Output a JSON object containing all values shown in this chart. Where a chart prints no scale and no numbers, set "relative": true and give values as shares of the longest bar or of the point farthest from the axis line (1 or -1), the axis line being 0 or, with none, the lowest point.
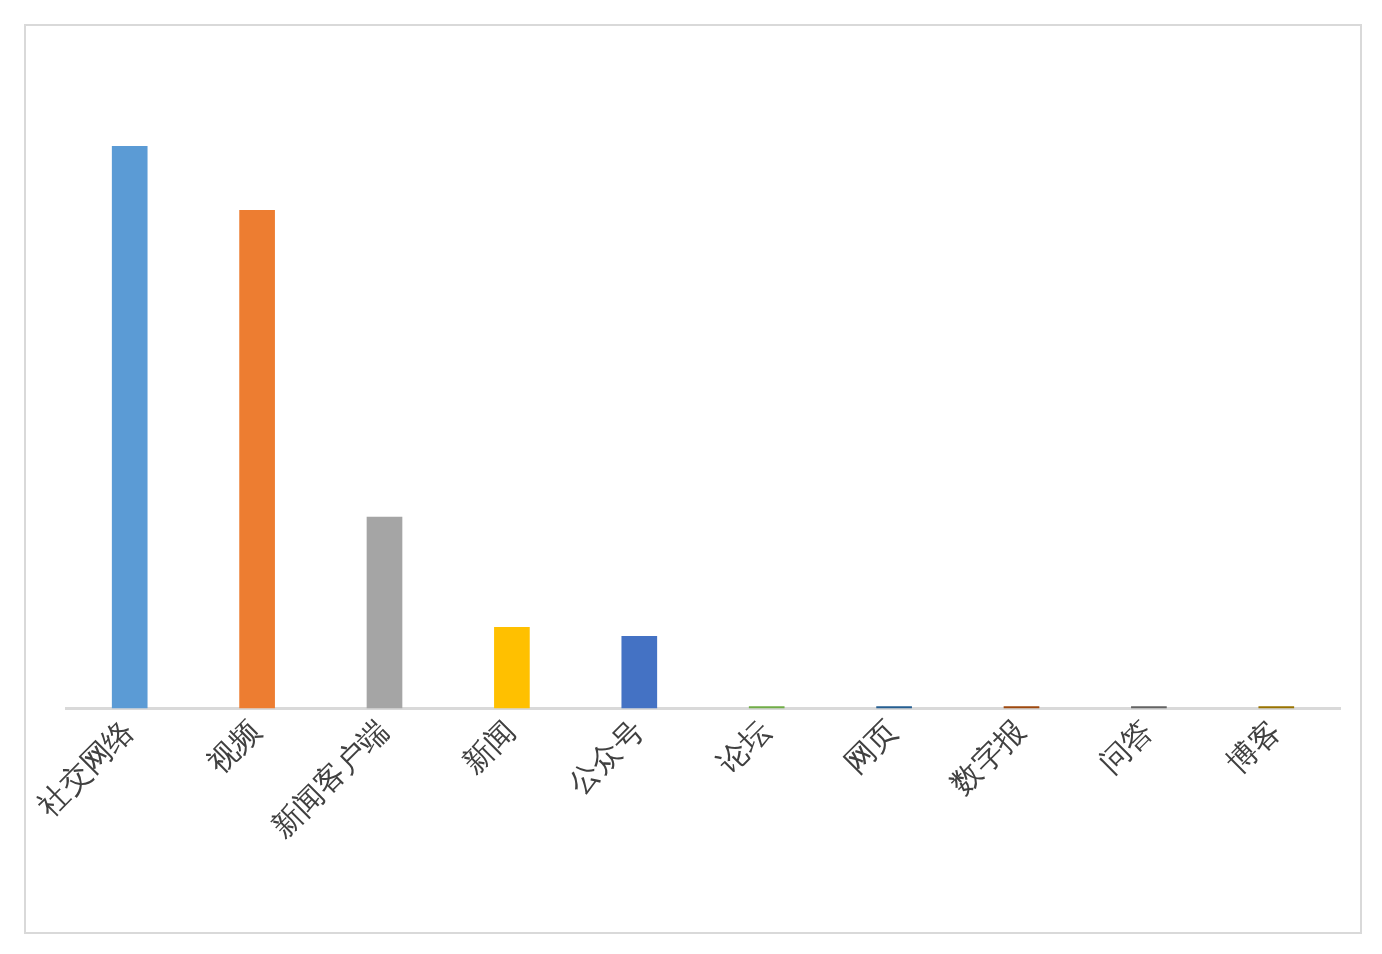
{
  "chart_data": {
    "type": "bar",
    "relative": true,
    "categories": [
      "社交网络",
      "视频",
      "新闻客户端",
      "新闻",
      "公众号",
      "论坛",
      "网页",
      "数字报",
      "问答",
      "博客"
    ],
    "values": [
      1,
      0.886,
      0.341,
      0.145,
      0.129,
      0.004,
      0.004,
      0.004,
      0.004,
      0.004
    ],
    "colors": [
      "#5b9bd5",
      "#ed7d31",
      "#a5a5a5",
      "#ffc000",
      "#4472c4",
      "#70ad47",
      "#255e91",
      "#9e480e",
      "#636363",
      "#997300"
    ],
    "grid": false,
    "legend": false
  }
}
